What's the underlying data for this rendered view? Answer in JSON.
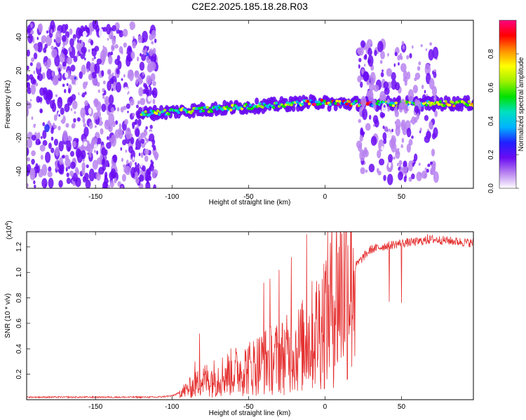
{
  "title": "C2E2.2025.185.18.28.R03",
  "chart_data": [
    {
      "type": "heatmap",
      "xlabel": "Height of straight line (km)",
      "ylabel": "Frequency (Hz)",
      "xlim": [
        -195,
        97
      ],
      "ylim": [
        -50,
        50
      ],
      "xticks": [
        -150,
        -100,
        -50,
        0,
        50
      ],
      "yticks": [
        -40,
        -20,
        0,
        20,
        40
      ],
      "colorbar": {
        "label": "Normalized spectral amplitude",
        "range": [
          0,
          1
        ],
        "ticks": [
          "0.0",
          "0.2",
          "0.4",
          "0.6",
          "0.8"
        ],
        "colormap": [
          "#ffffff",
          "#b884f0",
          "#6a0bf2",
          "#2020ff",
          "#00b4ff",
          "#00e0c0",
          "#00e000",
          "#a0f000",
          "#ffff00",
          "#ff9000",
          "#ff0000",
          "#ff0080"
        ]
      },
      "regions": [
        {
          "name": "noise-left",
          "x": [
            -195,
            -110
          ],
          "y": [
            -50,
            48
          ],
          "amplitude": 0.12
        },
        {
          "name": "signal-band",
          "x": [
            -122,
            97
          ],
          "y": [
            -5,
            5
          ],
          "amplitude": 0.5
        },
        {
          "name": "noise-right",
          "x": [
            22,
            73
          ],
          "y": [
            -45,
            37
          ],
          "amplitude": 0.1
        }
      ]
    },
    {
      "type": "line",
      "xlabel": "Height of straight line (km)",
      "ylabel": "SNR (10 * v/v)",
      "multiplier": "(x10",
      "multiplier_exp": "4",
      "multiplier_close": ")",
      "xlim": [
        -195,
        97
      ],
      "ylim": [
        0,
        1.32
      ],
      "xticks": [
        -150,
        -100,
        -50,
        0,
        50
      ],
      "yticks": [
        "0.2",
        "0.4",
        "0.6",
        "0.8",
        "1.0",
        "1.2"
      ],
      "color": "#e53030",
      "trend": [
        [
          -195,
          0.02
        ],
        [
          -110,
          0.02
        ],
        [
          -100,
          0.03
        ],
        [
          -90,
          0.08
        ],
        [
          -80,
          0.15
        ],
        [
          -70,
          0.18
        ],
        [
          -60,
          0.22
        ],
        [
          -50,
          0.25
        ],
        [
          -40,
          0.3
        ],
        [
          -30,
          0.33
        ],
        [
          -20,
          0.38
        ],
        [
          -15,
          0.42
        ],
        [
          -10,
          0.48
        ],
        [
          -5,
          0.55
        ],
        [
          0,
          0.66
        ],
        [
          5,
          0.78
        ],
        [
          10,
          0.9
        ],
        [
          15,
          0.98
        ],
        [
          20,
          1.05
        ],
        [
          25,
          1.12
        ],
        [
          30,
          1.18
        ],
        [
          40,
          1.21
        ],
        [
          50,
          1.23
        ],
        [
          60,
          1.24
        ],
        [
          70,
          1.26
        ],
        [
          80,
          1.25
        ],
        [
          97,
          1.23
        ]
      ],
      "spikes": [
        [
          -12,
          1.3
        ],
        [
          -22,
          1.12
        ],
        [
          -30,
          1.02
        ],
        [
          -36,
          0.95
        ],
        [
          -40,
          0.92
        ],
        [
          -82,
          0.52
        ],
        [
          -85,
          0.3
        ],
        [
          42,
          0.77
        ],
        [
          50,
          0.76
        ],
        [
          67,
          1.3
        ]
      ]
    }
  ]
}
